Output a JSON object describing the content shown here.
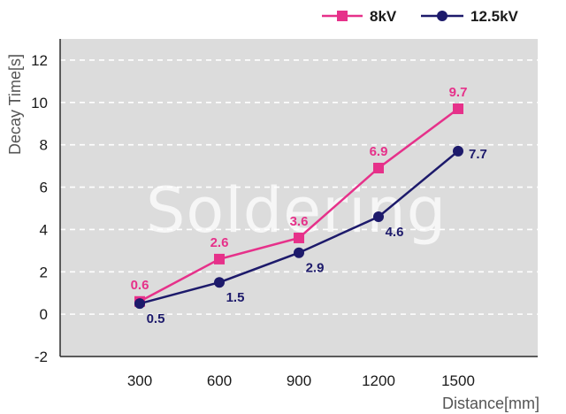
{
  "watermark": "Soldering",
  "chart_data": {
    "type": "line",
    "title": "",
    "xlabel": "Distance[mm]",
    "ylabel": "Decay Time[s]",
    "x": [
      300,
      600,
      900,
      1200,
      1500
    ],
    "xlim": [
      0,
      1800
    ],
    "ylim": [
      -2,
      13
    ],
    "yticks": [
      -2,
      0,
      2,
      4,
      6,
      8,
      10,
      12
    ],
    "grid": true,
    "legend": "top-right",
    "series": [
      {
        "name": "8kV",
        "color": "#e6318a",
        "marker": "square",
        "values": [
          0.6,
          2.6,
          3.6,
          6.9,
          9.7
        ],
        "labels": [
          "0.6",
          "2.6",
          "3.6",
          "6.9",
          "9.7"
        ]
      },
      {
        "name": "12.5kV",
        "color": "#1d1a6b",
        "marker": "circle",
        "values": [
          0.5,
          1.5,
          2.9,
          4.6,
          7.7
        ],
        "labels": [
          "0.5",
          "1.5",
          "2.9",
          "4.6",
          "7.7"
        ]
      }
    ]
  }
}
